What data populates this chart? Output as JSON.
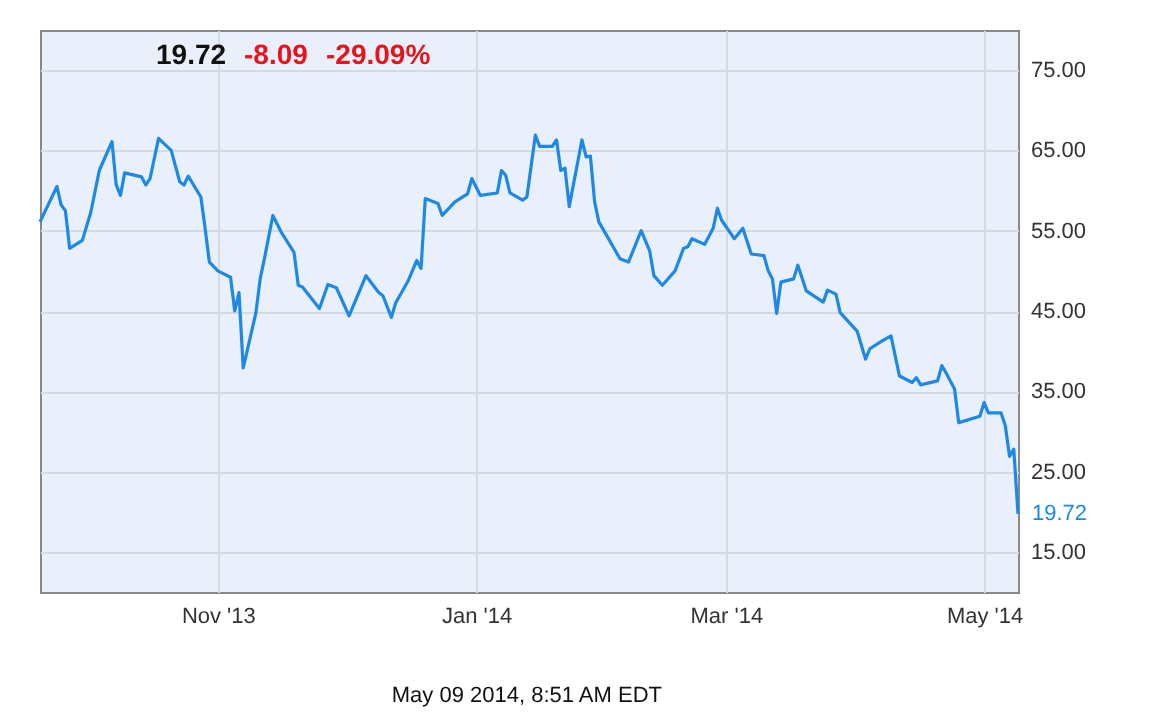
{
  "chart_data": {
    "type": "line",
    "x": [
      "2013-09-20",
      "2013-09-24",
      "2013-09-25",
      "2013-09-26",
      "2013-09-27",
      "2013-09-30",
      "2013-10-02",
      "2013-10-04",
      "2013-10-07",
      "2013-10-08",
      "2013-10-09",
      "2013-10-10",
      "2013-10-14",
      "2013-10-15",
      "2013-10-16",
      "2013-10-18",
      "2013-10-21",
      "2013-10-23",
      "2013-10-24",
      "2013-10-25",
      "2013-10-28",
      "2013-10-29",
      "2013-10-30",
      "2013-11-01",
      "2013-11-04",
      "2013-11-05",
      "2013-11-06",
      "2013-11-07",
      "2013-11-10",
      "2013-11-11",
      "2013-11-12",
      "2013-11-14",
      "2013-11-16",
      "2013-11-19",
      "2013-11-20",
      "2013-11-21",
      "2013-11-25",
      "2013-11-27",
      "2013-11-29",
      "2013-12-02",
      "2013-12-06",
      "2013-12-09",
      "2013-12-10",
      "2013-12-12",
      "2013-12-13",
      "2013-12-16",
      "2013-12-18",
      "2013-12-19",
      "2013-12-20",
      "2013-12-23",
      "2013-12-24",
      "2013-12-27",
      "2013-12-30",
      "2013-12-31",
      "2014-01-02",
      "2014-01-06",
      "2014-01-07",
      "2014-01-08",
      "2014-01-09",
      "2014-01-12",
      "2014-01-13",
      "2014-01-15",
      "2014-01-16",
      "2014-01-19",
      "2014-01-20",
      "2014-01-21",
      "2014-01-22",
      "2014-01-23",
      "2014-01-26",
      "2014-01-27",
      "2014-01-28",
      "2014-01-29",
      "2014-01-30",
      "2014-02-04",
      "2014-02-06",
      "2014-02-09",
      "2014-02-11",
      "2014-02-12",
      "2014-02-14",
      "2014-02-17",
      "2014-02-19",
      "2014-02-20",
      "2014-02-21",
      "2014-02-24",
      "2014-02-26",
      "2014-02-27",
      "2014-02-28",
      "2014-03-03",
      "2014-03-05",
      "2014-03-07",
      "2014-03-10",
      "2014-03-11",
      "2014-03-12",
      "2014-03-13",
      "2014-03-14",
      "2014-03-17",
      "2014-03-18",
      "2014-03-20",
      "2014-03-24",
      "2014-03-25",
      "2014-03-27",
      "2014-03-28",
      "2014-04-01",
      "2014-04-03",
      "2014-04-04",
      "2014-04-07",
      "2014-04-09",
      "2014-04-11",
      "2014-04-14",
      "2014-04-15",
      "2014-04-16",
      "2014-04-20",
      "2014-04-21",
      "2014-04-22",
      "2014-04-24",
      "2014-04-25",
      "2014-04-30",
      "2014-05-01",
      "2014-05-02",
      "2014-05-05",
      "2014-05-06",
      "2014-05-07",
      "2014-05-08",
      "2014-05-09"
    ],
    "series": [
      {
        "color": "#1e88e5",
        "values": [
          56.1,
          60.5,
          58.2,
          57.5,
          52.8,
          53.8,
          57.3,
          62.5,
          66.1,
          60.7,
          59.4,
          62.2,
          61.7,
          60.7,
          61.5,
          66.5,
          65,
          61.1,
          60.7,
          61.8,
          59.2,
          55.3,
          51.1,
          50,
          49.2,
          45,
          47.3,
          37.9,
          44.8,
          49,
          51.5,
          56.9,
          54.8,
          52.3,
          48.2,
          48,
          45.3,
          48.3,
          47.9,
          44.4,
          49.4,
          47.3,
          46.9,
          44.2,
          46,
          48.8,
          51.3,
          50.3,
          59,
          58.4,
          56.9,
          58.6,
          59.6,
          61.5,
          59.4,
          59.7,
          62.5,
          61.9,
          59.7,
          58.8,
          59.2,
          66.9,
          65.5,
          65.5,
          66.3,
          62.5,
          62.8,
          58,
          66.3,
          64.2,
          64.3,
          58.6,
          56.1,
          51.5,
          51.1,
          55,
          52.5,
          49.4,
          48.2,
          50,
          52.8,
          53,
          54,
          53.3,
          55.3,
          57.8,
          56.3,
          54,
          55.3,
          52.1,
          51.9,
          50,
          49,
          44.7,
          48.6,
          49,
          50.7,
          47.5,
          46.1,
          47.6,
          47.1,
          44.8,
          42.5,
          39,
          40.3,
          41.3,
          41.9,
          36.9,
          36.1,
          36.7,
          35.8,
          36.3,
          38.2,
          37.3,
          35.3,
          31.1,
          31.9,
          33.6,
          32.3,
          32.3,
          30.7,
          26.9,
          27.8,
          19.72
        ]
      }
    ],
    "xlim": [
      "2013-09-20",
      "2014-05-09"
    ],
    "xticks": [
      {
        "value": "2013-11-01",
        "label": "Nov '13"
      },
      {
        "value": "2014-01-01",
        "label": "Jan '14"
      },
      {
        "value": "2014-03-01",
        "label": "Mar '14"
      },
      {
        "value": "2014-05-01",
        "label": "May '14"
      }
    ],
    "ylim": [
      10,
      80
    ],
    "yticks": [
      {
        "value": 15,
        "label": "15.00"
      },
      {
        "value": 25,
        "label": "25.00"
      },
      {
        "value": 35,
        "label": "35.00"
      },
      {
        "value": 45,
        "label": "45.00"
      },
      {
        "value": 55,
        "label": "55.00"
      },
      {
        "value": 65,
        "label": "65.00"
      },
      {
        "value": 75,
        "label": "75.00"
      }
    ],
    "grid": true,
    "annotations": [
      "19.72",
      "-8.09",
      "-29.09%",
      {
        "text": "19.72",
        "x": "2014-05-09",
        "y": 19.72
      },
      "May 09 2014, 8:51 AM EDT"
    ]
  }
}
